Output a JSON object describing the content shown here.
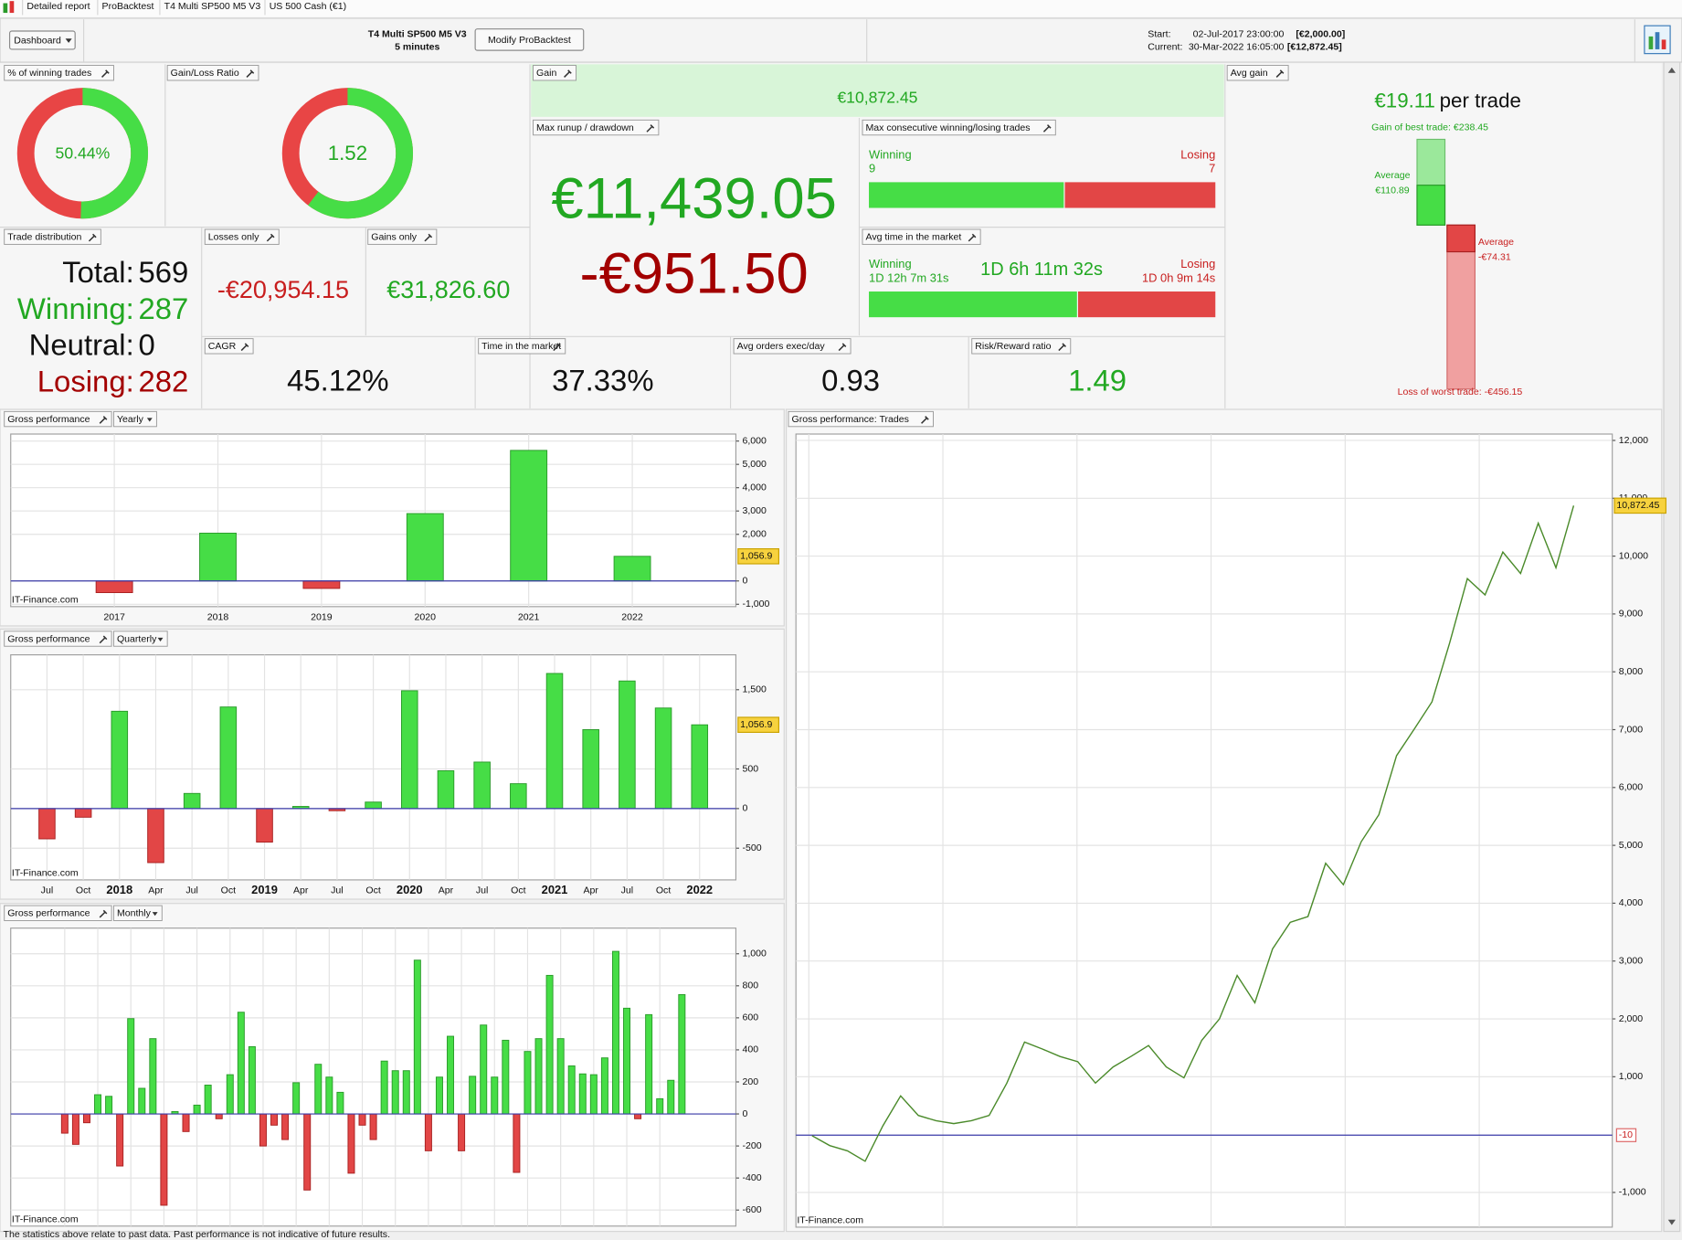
{
  "tabs": [
    "Detailed report",
    "ProBacktest",
    "T4 Multi SP500 M5 V3",
    "US 500 Cash (€1)"
  ],
  "toolbar": {
    "dashboard": "Dashboard",
    "strategy": "T4 Multi SP500 M5 V3",
    "timeframe": "5 minutes",
    "modify": "Modify ProBacktest",
    "start_label": "Start:",
    "start_date": "02-Jul-2017 23:00:00",
    "start_capital": "[€2,000.00]",
    "current_label": "Current:",
    "current_date": "30-Mar-2022 16:05:00",
    "current_capital": "[€12,872.45]"
  },
  "widgets": {
    "winning_trades": {
      "title": "% of winning trades",
      "value": 50.44,
      "value_label": "50.44%"
    },
    "gain_loss_ratio": {
      "title": "Gain/Loss Ratio",
      "value": 1.52
    },
    "gain": {
      "title": "Gain",
      "value": "€10,872.45"
    },
    "avg_gain": {
      "title": "Avg gain",
      "value": "€19.11",
      "unit": "per trade",
      "best": {
        "label": "Gain of best trade: €238.45",
        "value": 238.45
      },
      "average_win": {
        "label": "Average",
        "value": 110.89,
        "value_label": "€110.89"
      },
      "average_loss": {
        "label": "Average",
        "value": -74.31,
        "value_label": "-€74.31"
      },
      "worst": {
        "label": "Loss of worst trade: -€456.15",
        "value": -456.15
      }
    },
    "max_runup": {
      "title": "Max runup / drawdown",
      "runup": "€11,439.05",
      "drawdown": "-€951.50"
    },
    "max_consecutive": {
      "title": "Max consecutive winning/losing trades",
      "winning_label": "Winning",
      "winning": 9,
      "losing_label": "Losing",
      "losing": 7
    },
    "avg_time": {
      "title": "Avg time in the market",
      "winning_label": "Winning",
      "winning": "1D 12h 7m 31s",
      "overall": "1D 6h 11m 32s",
      "losing_label": "Losing",
      "losing": "1D 0h 9m 14s"
    },
    "trade_distribution": {
      "title": "Trade distribution",
      "rows": [
        {
          "label": "Total:",
          "value": 569
        },
        {
          "label": "Winning:",
          "value": 287
        },
        {
          "label": "Neutral:",
          "value": 0
        },
        {
          "label": "Losing:",
          "value": 282
        }
      ]
    },
    "losses_only": {
      "title": "Losses only",
      "value": "-€20,954.15"
    },
    "gains_only": {
      "title": "Gains only",
      "value": "€31,826.60"
    },
    "cagr": {
      "title": "CAGR",
      "value": "45.12%"
    },
    "time_in_market": {
      "title": "Time in the market",
      "value": "37.33%"
    },
    "avg_orders": {
      "title": "Avg orders exec/day",
      "value": 0.93
    },
    "risk_reward": {
      "title": "Risk/Reward ratio",
      "value": 1.49
    }
  },
  "chart_data": [
    {
      "type": "bar",
      "title": "Gross performance",
      "period": "Yearly",
      "watermark": "IT-Finance.com",
      "categories": [
        "2017",
        "2018",
        "2019",
        "2020",
        "2021",
        "2022"
      ],
      "values": [
        -500,
        2050,
        -320,
        2890,
        5600,
        1056.9
      ],
      "value_labels": [
        null,
        null,
        null,
        null,
        null,
        "1,056.9"
      ],
      "positive_color": "#46dd46",
      "negative_color": "#e24646",
      "ylim": [
        -1100,
        6300
      ],
      "yticks": [
        {
          "value": -1000,
          "label": "-1,000"
        },
        0,
        {
          "value": 2000,
          "label": "2,000"
        },
        {
          "value": 3000,
          "label": "3,000"
        },
        {
          "value": 4000,
          "label": "4,000"
        },
        {
          "value": 5000,
          "label": "5,000"
        },
        {
          "value": 6000,
          "label": "6,000"
        }
      ],
      "grid": true
    },
    {
      "type": "bar",
      "title": "Gross performance",
      "period": "Quarterly",
      "watermark": "IT-Finance.com",
      "categories": [
        "Jul",
        "Oct",
        "2018",
        "Apr",
        "Jul",
        "Oct",
        "2019",
        "Apr",
        "Jul",
        "Oct",
        "2020",
        "Apr",
        "Jul",
        "Oct",
        "2021",
        "Apr",
        "Jul",
        "Oct",
        "2022"
      ],
      "values": [
        -382,
        -109,
        1228,
        -682,
        191,
        1282,
        -423,
        27,
        -27,
        82,
        1487,
        477,
        587,
        314,
        1705,
        996,
        1610,
        1269,
        1056.9
      ],
      "value_labels": [
        null,
        null,
        null,
        null,
        null,
        null,
        null,
        null,
        null,
        null,
        null,
        null,
        null,
        null,
        null,
        null,
        null,
        null,
        "1,056.9"
      ],
      "positive_color": "#46dd46",
      "negative_color": "#e24646",
      "ylim": [
        -900,
        1940
      ],
      "yticks": [
        -500,
        0,
        500,
        {
          "value": 1500,
          "label": "1,500"
        }
      ],
      "grid": true
    },
    {
      "type": "bar",
      "title": "Gross performance",
      "period": "Monthly",
      "watermark": "IT-Finance.com",
      "values": [
        -120,
        -190,
        -55,
        120,
        110,
        -325,
        595,
        160,
        470,
        -570,
        15,
        -110,
        55,
        180,
        -30,
        245,
        635,
        420,
        -200,
        -70,
        -160,
        195,
        -475,
        310,
        230,
        135,
        -370,
        -70,
        -160,
        330,
        270,
        270,
        960,
        -230,
        230,
        485,
        -230,
        235,
        555,
        230,
        460,
        -365,
        390,
        470,
        865,
        470,
        300,
        250,
        245,
        350,
        1015,
        660,
        -30,
        620,
        95,
        210,
        745
      ],
      "positive_color": "#46dd46",
      "negative_color": "#e24646",
      "ylim": [
        -700,
        1160
      ],
      "yticks": [
        -600,
        -400,
        -200,
        0,
        200,
        400,
        600,
        800,
        {
          "value": 1000,
          "label": "1,000"
        }
      ],
      "grid": true
    },
    {
      "type": "line",
      "title": "Gross performance: Trades",
      "watermark": "IT-Finance.com",
      "values": [
        -20,
        -190,
        -280,
        -460,
        150,
        670,
        330,
        240,
        190,
        240,
        330,
        890,
        1600,
        1480,
        1350,
        1260,
        890,
        1170,
        1350,
        1540,
        1170,
        980,
        1630,
        2000,
        2750,
        2280,
        3210,
        3670,
        3770,
        4690,
        4320,
        5060,
        5530,
        6550,
        7010,
        7480,
        8500,
        9610,
        9330,
        10070,
        9700,
        10570,
        9800,
        10872.45
      ],
      "value_labels": [
        null,
        null,
        null,
        null,
        null,
        null,
        null,
        null,
        null,
        null,
        null,
        null,
        null,
        null,
        null,
        null,
        null,
        null,
        null,
        null,
        null,
        null,
        null,
        null,
        null,
        null,
        null,
        null,
        null,
        null,
        null,
        null,
        null,
        null,
        null,
        null,
        null,
        null,
        null,
        null,
        null,
        null,
        null,
        "10,872.45"
      ],
      "color": "#4a8a2a",
      "baseline": -10,
      "ylim": [
        -1600,
        12110
      ],
      "yticks": [
        {
          "value": -1000,
          "label": "-1,000"
        },
        {
          "value": 1000,
          "label": "1,000"
        },
        {
          "value": 2000,
          "label": "2,000"
        },
        {
          "value": 3000,
          "label": "3,000"
        },
        {
          "value": 4000,
          "label": "4,000"
        },
        {
          "value": 5000,
          "label": "5,000"
        },
        {
          "value": 6000,
          "label": "6,000"
        },
        {
          "value": 7000,
          "label": "7,000"
        },
        {
          "value": 8000,
          "label": "8,000"
        },
        {
          "value": 9000,
          "label": "9,000"
        },
        {
          "value": 10000,
          "label": "10,000"
        },
        {
          "value": 11000,
          "label": "11,000"
        },
        {
          "value": 12000,
          "label": "12,000"
        }
      ],
      "grid": true
    }
  ],
  "footer": "The statistics above relate to past data. Past performance is not indicative of future results."
}
